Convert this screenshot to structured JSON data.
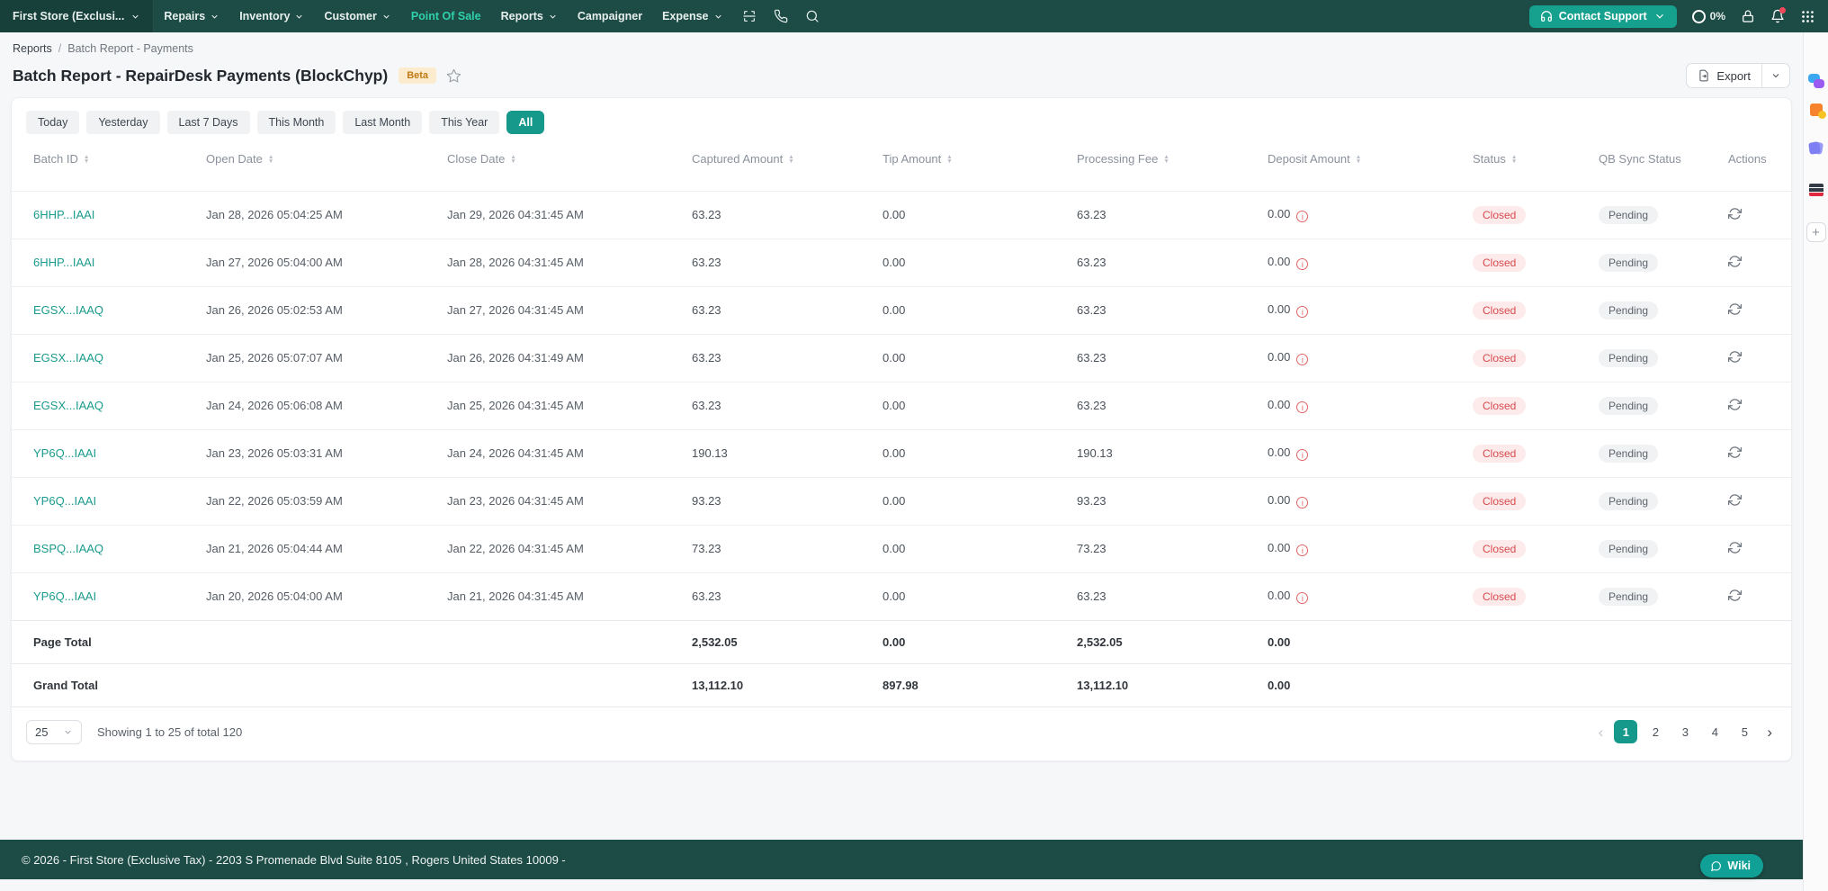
{
  "colors": {
    "nav_bg": "#1d4b45",
    "brand_teal": "#16998a",
    "nav_active_link": "#2fd0ab",
    "contact_support_bg": "#16a08e",
    "link": "#1b9b8d",
    "status_closed_text": "#d64a4e",
    "status_closed_bg": "#fdeaea",
    "qb_pending_text": "#5d646c",
    "qb_pending_bg": "#f1f2f3",
    "beta_text": "#c07a17",
    "beta_bg": "#fcebcd",
    "deposit_warning": "#e06363"
  },
  "topnav": {
    "store": {
      "label": "First Store (Exclusi..."
    },
    "menus": [
      {
        "label": "Repairs",
        "dropdown": true,
        "active": false
      },
      {
        "label": "Inventory",
        "dropdown": true,
        "active": false
      },
      {
        "label": "Customer",
        "dropdown": true,
        "active": false
      },
      {
        "label": "Point Of Sale",
        "dropdown": false,
        "active": true
      },
      {
        "label": "Reports",
        "dropdown": true,
        "active": false
      },
      {
        "label": "Campaigner",
        "dropdown": false,
        "active": false
      },
      {
        "label": "Expense",
        "dropdown": true,
        "active": false
      }
    ],
    "contact_support": {
      "label": "Contact Support"
    },
    "usage": {
      "percent_label": "0%"
    }
  },
  "breadcrumb": {
    "parent": "Reports",
    "separator": "/",
    "current": "Batch Report - Payments"
  },
  "header": {
    "title": "Batch Report - RepairDesk Payments (BlockChyp)",
    "beta": "Beta",
    "export_label": "Export"
  },
  "filters": {
    "options": [
      "Today",
      "Yesterday",
      "Last 7 Days",
      "This Month",
      "Last Month",
      "This Year",
      "All"
    ],
    "active": "All"
  },
  "table": {
    "columns": [
      {
        "label": "Batch ID",
        "sortable": true
      },
      {
        "label": "Open Date",
        "sortable": true
      },
      {
        "label": "Close Date",
        "sortable": true
      },
      {
        "label": "Captured Amount",
        "sortable": true
      },
      {
        "label": "Tip Amount",
        "sortable": true
      },
      {
        "label": "Processing Fee",
        "sortable": true
      },
      {
        "label": "Deposit Amount",
        "sortable": true
      },
      {
        "label": "Status",
        "sortable": true
      },
      {
        "label": "QB Sync Status",
        "sortable": false
      },
      {
        "label": "Actions",
        "sortable": false
      }
    ],
    "rows": [
      {
        "batch_id": "6HHP...IAAI",
        "open_date": "Jan 28, 2026 05:04:25 AM",
        "close_date": "Jan 29, 2026 04:31:45 AM",
        "captured_amount": "63.23",
        "tip_amount": "0.00",
        "processing_fee": "63.23",
        "deposit_amount": "0.00",
        "status": "Closed",
        "qb_sync_status": "Pending"
      },
      {
        "batch_id": "6HHP...IAAI",
        "open_date": "Jan 27, 2026 05:04:00 AM",
        "close_date": "Jan 28, 2026 04:31:45 AM",
        "captured_amount": "63.23",
        "tip_amount": "0.00",
        "processing_fee": "63.23",
        "deposit_amount": "0.00",
        "status": "Closed",
        "qb_sync_status": "Pending"
      },
      {
        "batch_id": "EGSX...IAAQ",
        "open_date": "Jan 26, 2026 05:02:53 AM",
        "close_date": "Jan 27, 2026 04:31:45 AM",
        "captured_amount": "63.23",
        "tip_amount": "0.00",
        "processing_fee": "63.23",
        "deposit_amount": "0.00",
        "status": "Closed",
        "qb_sync_status": "Pending"
      },
      {
        "batch_id": "EGSX...IAAQ",
        "open_date": "Jan 25, 2026 05:07:07 AM",
        "close_date": "Jan 26, 2026 04:31:49 AM",
        "captured_amount": "63.23",
        "tip_amount": "0.00",
        "processing_fee": "63.23",
        "deposit_amount": "0.00",
        "status": "Closed",
        "qb_sync_status": "Pending"
      },
      {
        "batch_id": "EGSX...IAAQ",
        "open_date": "Jan 24, 2026 05:06:08 AM",
        "close_date": "Jan 25, 2026 04:31:45 AM",
        "captured_amount": "63.23",
        "tip_amount": "0.00",
        "processing_fee": "63.23",
        "deposit_amount": "0.00",
        "status": "Closed",
        "qb_sync_status": "Pending"
      },
      {
        "batch_id": "YP6Q...IAAI",
        "open_date": "Jan 23, 2026 05:03:31 AM",
        "close_date": "Jan 24, 2026 04:31:45 AM",
        "captured_amount": "190.13",
        "tip_amount": "0.00",
        "processing_fee": "190.13",
        "deposit_amount": "0.00",
        "status": "Closed",
        "qb_sync_status": "Pending"
      },
      {
        "batch_id": "YP6Q...IAAI",
        "open_date": "Jan 22, 2026 05:03:59 AM",
        "close_date": "Jan 23, 2026 04:31:45 AM",
        "captured_amount": "93.23",
        "tip_amount": "0.00",
        "processing_fee": "93.23",
        "deposit_amount": "0.00",
        "status": "Closed",
        "qb_sync_status": "Pending"
      },
      {
        "batch_id": "BSPQ...IAAQ",
        "open_date": "Jan 21, 2026 05:04:44 AM",
        "close_date": "Jan 22, 2026 04:31:45 AM",
        "captured_amount": "73.23",
        "tip_amount": "0.00",
        "processing_fee": "73.23",
        "deposit_amount": "0.00",
        "status": "Closed",
        "qb_sync_status": "Pending"
      },
      {
        "batch_id": "YP6Q...IAAI",
        "open_date": "Jan 20, 2026 05:04:00 AM",
        "close_date": "Jan 21, 2026 04:31:45 AM",
        "captured_amount": "63.23",
        "tip_amount": "0.00",
        "processing_fee": "63.23",
        "deposit_amount": "0.00",
        "status": "Closed",
        "qb_sync_status": "Pending"
      }
    ],
    "page_total": {
      "label": "Page Total",
      "captured_amount": "2,532.05",
      "tip_amount": "0.00",
      "processing_fee": "2,532.05",
      "deposit_amount": "0.00"
    },
    "grand_total": {
      "label": "Grand Total",
      "captured_amount": "13,112.10",
      "tip_amount": "897.98",
      "processing_fee": "13,112.10",
      "deposit_amount": "0.00"
    }
  },
  "pagination": {
    "page_size": "25",
    "summary": "Showing 1 to 25 of total 120",
    "pages": [
      "1",
      "2",
      "3",
      "4",
      "5"
    ],
    "active_page": "1",
    "prev_label": "‹",
    "next_label": "›"
  },
  "footer": {
    "text": "© 2026 - First Store (Exclusive Tax) - 2203 S Promenade Blvd Suite 8105 , Rogers United States 10009 -",
    "wiki_label": "Wiki"
  }
}
